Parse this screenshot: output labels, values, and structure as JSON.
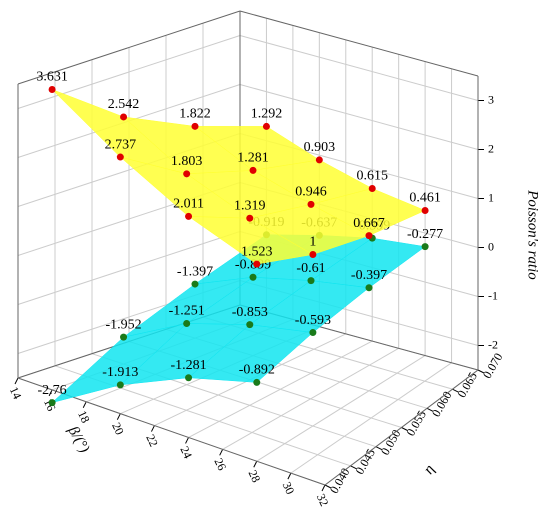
{
  "chart_data": {
    "type": "surface3d",
    "x_label": "β/(°)",
    "y_label": "η",
    "z_label": "Poisson's ratio",
    "x": [
      16,
      20,
      24,
      28
    ],
    "y": [
      0.04,
      0.05,
      0.06,
      0.07
    ],
    "xlim": [
      14,
      32
    ],
    "ylim": [
      0.04,
      0.07
    ],
    "zlim": [
      -2.5,
      3.5
    ],
    "xticks": [
      14,
      16,
      18,
      20,
      22,
      24,
      26,
      28,
      30,
      32
    ],
    "yticks": [
      {
        "value": 0.04,
        "label": "0.040"
      },
      {
        "value": 0.045,
        "label": "0.045"
      },
      {
        "value": 0.05,
        "label": "0.050"
      },
      {
        "value": 0.055,
        "label": "0.055"
      },
      {
        "value": 0.06,
        "label": "0.060"
      },
      {
        "value": 0.065,
        "label": "0.065"
      },
      {
        "value": 0.07,
        "label": "0.070"
      }
    ],
    "zticks": [
      -2,
      -1,
      0,
      1,
      2,
      3
    ],
    "grid": true,
    "series": [
      {
        "color": "#ffff33",
        "marker_color": "#e00000",
        "values": [
          [
            3.631,
            2.737,
            2.011,
            1.523
          ],
          [
            2.542,
            1.803,
            1.319,
            1
          ],
          [
            1.822,
            1.281,
            0.946,
            0.667
          ],
          [
            1.292,
            0.903,
            0.615,
            0.461
          ]
        ]
      },
      {
        "color": "#11e5f0",
        "marker_color": "#1a7a1a",
        "values": [
          [
            -2.76,
            -1.913,
            -1.281,
            -0.892
          ],
          [
            -1.952,
            -1.251,
            -0.853,
            -0.593
          ],
          [
            -1.397,
            -0.899,
            -0.61,
            -0.397
          ],
          [
            -0.919,
            -0.637,
            -0.399,
            -0.277
          ]
        ]
      }
    ]
  }
}
